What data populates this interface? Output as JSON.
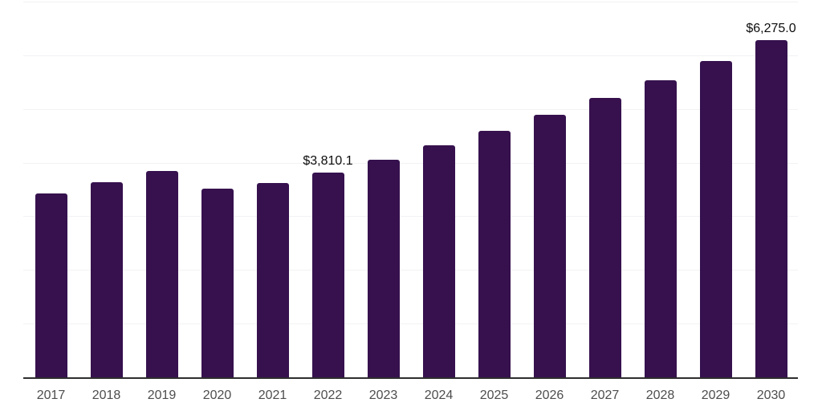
{
  "chart_data": {
    "type": "bar",
    "title": "",
    "xlabel": "",
    "ylabel": "",
    "categories": [
      "2017",
      "2018",
      "2019",
      "2020",
      "2021",
      "2022",
      "2023",
      "2024",
      "2025",
      "2026",
      "2027",
      "2028",
      "2029",
      "2030"
    ],
    "values": [
      3430,
      3640,
      3850,
      3520,
      3625,
      3810.1,
      4055,
      4316,
      4593,
      4888,
      5202,
      5537,
      5893,
      6275
    ],
    "value_labels": [
      "",
      "",
      "",
      "",
      "",
      "$3,810.1",
      "",
      "",
      "",
      "",
      "",
      "",
      "",
      "$6,275.0"
    ],
    "ylim": [
      0,
      7000
    ],
    "gridline_interval": 1000,
    "grid": true,
    "legend": false,
    "bar_color": "#36114E",
    "gridline_color": "#f2f2f4",
    "axis_line_color": "#2e2e2e",
    "tick_label_color": "#4d4d4d",
    "value_label_color": "#0d0d0d",
    "background_color": "#ffffff"
  }
}
